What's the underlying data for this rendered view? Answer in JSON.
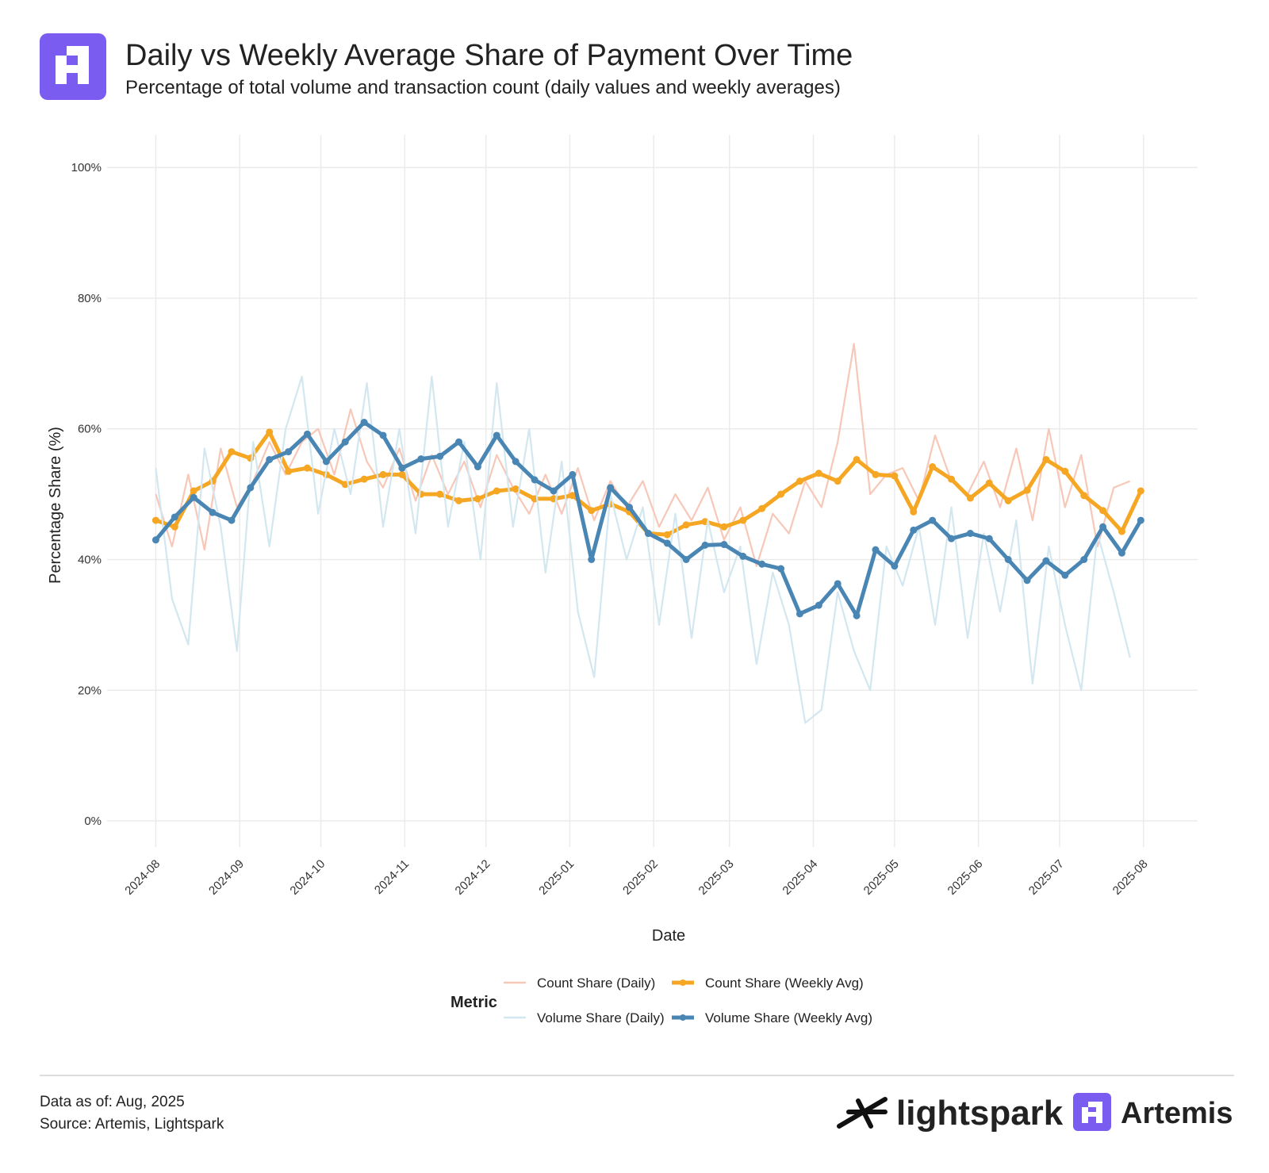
{
  "chart_data": {
    "type": "line",
    "title": "Daily vs Weekly Average Share of Payment Over Time",
    "subtitle": "Percentage of total volume and transaction count (daily values and weekly averages)",
    "x_label": "Date",
    "y_label": "Percentage Share (%)",
    "legend_title": "Metric",
    "xlim": [
      -18,
      385
    ],
    "xticks": [
      {
        "value": 0,
        "label": "2024-08"
      },
      {
        "value": 31,
        "label": "2024-09"
      },
      {
        "value": 61,
        "label": "2024-10"
      },
      {
        "value": 92,
        "label": "2024-11"
      },
      {
        "value": 122,
        "label": "2024-12"
      },
      {
        "value": 153,
        "label": "2025-01"
      },
      {
        "value": 184,
        "label": "2025-02"
      },
      {
        "value": 212,
        "label": "2025-03"
      },
      {
        "value": 243,
        "label": "2025-04"
      },
      {
        "value": 273,
        "label": "2025-05"
      },
      {
        "value": 304,
        "label": "2025-06"
      },
      {
        "value": 334,
        "label": "2025-07"
      },
      {
        "value": 365,
        "label": "2025-08"
      }
    ],
    "ylim": [
      -4,
      105
    ],
    "yticks": [
      {
        "value": 0,
        "label": "0%"
      },
      {
        "value": 20,
        "label": "20%"
      },
      {
        "value": 40,
        "label": "40%"
      },
      {
        "value": 60,
        "label": "60%"
      },
      {
        "value": 80,
        "label": "80%"
      },
      {
        "value": 100,
        "label": "100%"
      }
    ],
    "grid": true,
    "series": [
      {
        "name": "Count Share (Daily)",
        "color": "#f7c7b8",
        "markers": false,
        "x": [
          0,
          6,
          12,
          18,
          24,
          30,
          36,
          42,
          48,
          54,
          60,
          66,
          72,
          78,
          84,
          90,
          96,
          102,
          108,
          114,
          120,
          126,
          132,
          138,
          144,
          150,
          156,
          162,
          168,
          174,
          180,
          186,
          192,
          198,
          204,
          210,
          216,
          222,
          228,
          234,
          240,
          246,
          252,
          258,
          264,
          270,
          276,
          282,
          288,
          294,
          300,
          306,
          312,
          318,
          324,
          330,
          336,
          342,
          348,
          354,
          360
        ],
        "values": [
          50,
          42,
          53,
          41.5,
          57,
          48,
          52,
          58,
          53,
          58,
          60,
          53,
          63,
          55,
          51,
          57,
          49,
          56,
          50,
          55,
          48,
          56,
          51,
          47,
          53,
          47,
          54,
          46,
          52,
          48,
          52,
          45,
          50,
          46,
          51,
          43,
          48,
          39,
          47,
          44,
          52,
          48,
          58,
          73,
          50,
          53,
          54,
          49,
          59,
          52,
          50,
          55,
          48,
          57,
          46,
          60,
          48,
          56,
          42,
          51,
          52
        ]
      },
      {
        "name": "Count Share (Weekly Avg)",
        "color": "#f5a623",
        "markers": true,
        "x": [
          0,
          7,
          14,
          21,
          28,
          35,
          42,
          49,
          56,
          63,
          70,
          77,
          84,
          91,
          98,
          105,
          112,
          119,
          126,
          133,
          140,
          147,
          154,
          161,
          168,
          175,
          182,
          189,
          196,
          203,
          210,
          217,
          224,
          231,
          238,
          245,
          252,
          259,
          266,
          273,
          280,
          287,
          294,
          301,
          308,
          315,
          322,
          329,
          336,
          343,
          350,
          357,
          364
        ],
        "values": [
          46,
          45,
          50.5,
          52,
          56.5,
          55.5,
          59.5,
          53.5,
          54,
          53,
          51.5,
          52.3,
          53,
          53,
          50,
          50,
          49,
          49.3,
          50.5,
          50.8,
          49.3,
          49.3,
          49.8,
          47.5,
          48.5,
          47.3,
          44,
          43.8,
          45.3,
          45.8,
          45,
          46,
          47.8,
          50,
          52,
          53.2,
          52,
          55.3,
          53,
          52.8,
          47.3,
          54.2,
          52.3,
          49.4,
          51.7,
          49,
          50.6,
          55.3,
          53.5,
          49.8,
          47.5,
          44.3,
          50.5
        ]
      },
      {
        "name": "Volume Share (Daily)",
        "color": "#d3e7f0",
        "markers": false,
        "x": [
          0,
          6,
          12,
          18,
          24,
          30,
          36,
          42,
          48,
          54,
          60,
          66,
          72,
          78,
          84,
          90,
          96,
          102,
          108,
          114,
          120,
          126,
          132,
          138,
          144,
          150,
          156,
          162,
          168,
          174,
          180,
          186,
          192,
          198,
          204,
          210,
          216,
          222,
          228,
          234,
          240,
          246,
          252,
          258,
          264,
          270,
          276,
          282,
          288,
          294,
          300,
          306,
          312,
          318,
          324,
          330,
          336,
          342,
          348,
          354,
          360
        ],
        "values": [
          54,
          34,
          27,
          57,
          45,
          26,
          58,
          42,
          60,
          68,
          47,
          60,
          50,
          67,
          45,
          60,
          44,
          68,
          45,
          58,
          40,
          67,
          45,
          60,
          38,
          55,
          32,
          22,
          50,
          40,
          48,
          30,
          47,
          28,
          46,
          35,
          42,
          24,
          38,
          30,
          15,
          17,
          35,
          26,
          20,
          42,
          36,
          45,
          30,
          48,
          28,
          44,
          32,
          46,
          21,
          42,
          30,
          20,
          44,
          35,
          25
        ]
      },
      {
        "name": "Volume Share (Weekly Avg)",
        "color": "#4a86b4",
        "markers": true,
        "x": [
          0,
          7,
          14,
          21,
          28,
          35,
          42,
          49,
          56,
          63,
          70,
          77,
          84,
          91,
          98,
          105,
          112,
          119,
          126,
          133,
          140,
          147,
          154,
          161,
          168,
          175,
          182,
          189,
          196,
          203,
          210,
          217,
          224,
          231,
          238,
          245,
          252,
          259,
          266,
          273,
          280,
          287,
          294,
          301,
          308,
          315,
          322,
          329,
          336,
          343,
          350,
          357,
          364
        ],
        "values": [
          43,
          46.5,
          49.5,
          47.2,
          46,
          51,
          55.3,
          56.5,
          59.2,
          55,
          58,
          61,
          59,
          54,
          55.4,
          55.8,
          58,
          54.2,
          59,
          55,
          52.2,
          50.5,
          53,
          40,
          51,
          48,
          44,
          42.5,
          40,
          42.2,
          42.3,
          40.5,
          39.3,
          38.6,
          31.7,
          33,
          36.3,
          31.4,
          41.5,
          39,
          44.5,
          46,
          43.2,
          44,
          43.2,
          40,
          36.8,
          39.8,
          37.6,
          40,
          45,
          41,
          46
        ]
      }
    ],
    "footer": {
      "data_as_of": "Data as of: Aug, 2025",
      "source": "Source: Artemis, Lightspark"
    },
    "logos": [
      "lightspark",
      "Artemis"
    ]
  }
}
